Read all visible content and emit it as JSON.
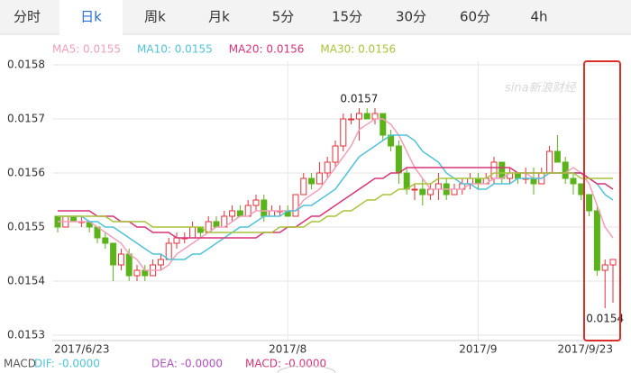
{
  "tabs": [
    "分时",
    "日k",
    "周k",
    "月k",
    "5分",
    "15分",
    "30分",
    "60分",
    "4h"
  ],
  "active_tab": 1,
  "chart_data": {
    "type": "candlestick",
    "watermark": "sina新浪财经",
    "ma_legend": [
      {
        "text": "MA5: 0.0155",
        "color": "#f2a0b8"
      },
      {
        "text": "MA10: 0.0155",
        "color": "#4fc3d8"
      },
      {
        "text": "MA20: 0.0156",
        "color": "#d9337a"
      },
      {
        "text": "MA30: 0.0156",
        "color": "#a8c43a"
      }
    ],
    "ylim": [
      0.0153,
      0.0158
    ],
    "yticks": [
      0.0153,
      0.0154,
      0.0155,
      0.0156,
      0.0157,
      0.0158
    ],
    "x_labels": [
      {
        "index": 0,
        "label": "2017/6/23"
      },
      {
        "index": 29,
        "label": "2017/8"
      },
      {
        "index": 53,
        "label": "2017/9"
      },
      {
        "index": 70,
        "label": "2017/9/23"
      }
    ],
    "up_color": "#e0303a",
    "down_color": "#5bb31a",
    "open": [
      0.01552,
      0.0155,
      0.01552,
      0.01551,
      0.01551,
      0.0155,
      0.01548,
      0.01547,
      0.01543,
      0.01545,
      0.01541,
      0.01542,
      0.01541,
      0.01543,
      0.01544,
      0.01547,
      0.01548,
      0.01548,
      0.0155,
      0.01549,
      0.01551,
      0.0155,
      0.01552,
      0.01553,
      0.01552,
      0.01554,
      0.01555,
      0.01552,
      0.01553,
      0.01553,
      0.01552,
      0.01556,
      0.01559,
      0.01558,
      0.0156,
      0.01562,
      0.01565,
      0.0157,
      0.0157,
      0.01571,
      0.0157,
      0.01571,
      0.01567,
      0.01565,
      0.0156,
      0.01557,
      0.01557,
      0.01556,
      0.01557,
      0.01558,
      0.01556,
      0.01557,
      0.01558,
      0.01559,
      0.01558,
      0.01559,
      0.01562,
      0.01559,
      0.0156,
      0.01559,
      0.01559,
      0.01558,
      0.0156,
      0.01564,
      0.01562,
      0.01559,
      0.01558,
      0.01556,
      0.01553,
      0.01542,
      0.01543
    ],
    "high": [
      0.01552,
      0.01552,
      0.01552,
      0.01552,
      0.01551,
      0.0155,
      0.01549,
      0.01547,
      0.01546,
      0.01546,
      0.01543,
      0.01543,
      0.01544,
      0.01545,
      0.01548,
      0.01549,
      0.01549,
      0.01551,
      0.0155,
      0.01552,
      0.01552,
      0.01553,
      0.01554,
      0.01554,
      0.01555,
      0.01556,
      0.01556,
      0.01554,
      0.01554,
      0.01554,
      0.01556,
      0.0156,
      0.0156,
      0.01562,
      0.01563,
      0.01566,
      0.01571,
      0.01571,
      0.01572,
      0.01572,
      0.01572,
      0.01571,
      0.01568,
      0.01566,
      0.01561,
      0.01558,
      0.01559,
      0.01558,
      0.0156,
      0.01559,
      0.01558,
      0.01559,
      0.0156,
      0.0156,
      0.0156,
      0.01563,
      0.01562,
      0.01561,
      0.0156,
      0.01561,
      0.01561,
      0.01561,
      0.01565,
      0.01567,
      0.01563,
      0.0156,
      0.01558,
      0.01556,
      0.01554,
      0.01544,
      0.01544
    ],
    "low": [
      0.01549,
      0.0155,
      0.01551,
      0.0155,
      0.01549,
      0.01547,
      0.01546,
      0.0154,
      0.01542,
      0.0154,
      0.0154,
      0.0154,
      0.01541,
      0.01542,
      0.01544,
      0.01546,
      0.01547,
      0.01548,
      0.01548,
      0.01549,
      0.0155,
      0.0155,
      0.01551,
      0.01552,
      0.01552,
      0.01553,
      0.01551,
      0.01552,
      0.01552,
      0.01552,
      0.01552,
      0.01556,
      0.01557,
      0.01558,
      0.01559,
      0.01561,
      0.01564,
      0.01569,
      0.01566,
      0.0157,
      0.01569,
      0.01566,
      0.01564,
      0.01558,
      0.01556,
      0.01555,
      0.01554,
      0.01555,
      0.01555,
      0.01555,
      0.01556,
      0.01556,
      0.01557,
      0.01557,
      0.01558,
      0.01558,
      0.01558,
      0.01558,
      0.01558,
      0.01558,
      0.01556,
      0.01558,
      0.0156,
      0.01562,
      0.01558,
      0.01556,
      0.01555,
      0.01552,
      0.01541,
      0.01535,
      0.01536
    ],
    "close": [
      0.0155,
      0.01552,
      0.01551,
      0.01551,
      0.0155,
      0.01548,
      0.01547,
      0.01543,
      0.01545,
      0.01541,
      0.01542,
      0.01541,
      0.01543,
      0.01544,
      0.01547,
      0.01548,
      0.01548,
      0.0155,
      0.01549,
      0.01551,
      0.0155,
      0.01552,
      0.01553,
      0.01552,
      0.01554,
      0.01555,
      0.01552,
      0.01553,
      0.01553,
      0.01552,
      0.01556,
      0.01559,
      0.01558,
      0.0156,
      0.01562,
      0.01565,
      0.0157,
      0.0157,
      0.01571,
      0.0157,
      0.01571,
      0.01567,
      0.01565,
      0.0156,
      0.01557,
      0.01557,
      0.01556,
      0.01557,
      0.01558,
      0.01556,
      0.01557,
      0.01558,
      0.01559,
      0.01558,
      0.01559,
      0.01562,
      0.01559,
      0.0156,
      0.01559,
      0.01559,
      0.01558,
      0.0156,
      0.01564,
      0.01562,
      0.01559,
      0.01558,
      0.01556,
      0.01553,
      0.01542,
      0.01543,
      0.01544
    ],
    "series": [
      {
        "name": "MA5",
        "color": "#f2a0b8",
        "values": [
          0.01551,
          0.01551,
          0.01551,
          0.01551,
          0.01551,
          0.0155,
          0.01549,
          0.01548,
          0.01547,
          0.01545,
          0.01544,
          0.01542,
          0.01542,
          0.01542,
          0.01543,
          0.01545,
          0.01546,
          0.01547,
          0.01548,
          0.01549,
          0.0155,
          0.0155,
          0.01551,
          0.01552,
          0.01552,
          0.01553,
          0.01553,
          0.01553,
          0.01553,
          0.01553,
          0.01553,
          0.01555,
          0.01556,
          0.01557,
          0.01559,
          0.01561,
          0.01563,
          0.01565,
          0.01568,
          0.01569,
          0.0157,
          0.0157,
          0.01569,
          0.01567,
          0.01564,
          0.01561,
          0.01559,
          0.01557,
          0.01557,
          0.01557,
          0.01557,
          0.01557,
          0.01558,
          0.01558,
          0.01558,
          0.01559,
          0.01559,
          0.0156,
          0.0156,
          0.0156,
          0.01559,
          0.01559,
          0.0156,
          0.0156,
          0.0156,
          0.01561,
          0.0156,
          0.01558,
          0.01554,
          0.0155,
          0.01548
        ]
      },
      {
        "name": "MA10",
        "color": "#4fc3d8",
        "values": [
          0.01552,
          0.01552,
          0.01552,
          0.01552,
          0.01551,
          0.01551,
          0.0155,
          0.0155,
          0.01549,
          0.01548,
          0.01547,
          0.01546,
          0.01545,
          0.01545,
          0.01544,
          0.01544,
          0.01544,
          0.01545,
          0.01545,
          0.01546,
          0.01547,
          0.01548,
          0.01549,
          0.0155,
          0.0155,
          0.01551,
          0.01552,
          0.01552,
          0.01552,
          0.01553,
          0.01553,
          0.01554,
          0.01554,
          0.01555,
          0.01556,
          0.01557,
          0.01559,
          0.01561,
          0.01563,
          0.01564,
          0.01565,
          0.01566,
          0.01567,
          0.01567,
          0.01567,
          0.01566,
          0.01564,
          0.01563,
          0.01562,
          0.0156,
          0.01559,
          0.01558,
          0.01558,
          0.01557,
          0.01557,
          0.01558,
          0.01558,
          0.01558,
          0.01559,
          0.01559,
          0.01559,
          0.01559,
          0.0156,
          0.0156,
          0.0156,
          0.0156,
          0.0156,
          0.01559,
          0.01558,
          0.01556,
          0.01555
        ]
      },
      {
        "name": "MA20",
        "color": "#d9337a",
        "values": [
          0.01553,
          0.01553,
          0.01553,
          0.01553,
          0.01553,
          0.01552,
          0.01552,
          0.01552,
          0.01551,
          0.01551,
          0.0155,
          0.0155,
          0.01549,
          0.01549,
          0.01549,
          0.01548,
          0.01548,
          0.01548,
          0.01548,
          0.01548,
          0.01548,
          0.01548,
          0.01548,
          0.01548,
          0.01548,
          0.01548,
          0.01549,
          0.01549,
          0.01549,
          0.0155,
          0.0155,
          0.01551,
          0.01552,
          0.01552,
          0.01553,
          0.01554,
          0.01555,
          0.01556,
          0.01557,
          0.01558,
          0.01559,
          0.01559,
          0.0156,
          0.0156,
          0.01561,
          0.01561,
          0.01561,
          0.01561,
          0.01561,
          0.01561,
          0.01561,
          0.01561,
          0.01561,
          0.01561,
          0.01561,
          0.01561,
          0.01561,
          0.01561,
          0.0156,
          0.0156,
          0.0156,
          0.0156,
          0.0156,
          0.0156,
          0.0156,
          0.0156,
          0.0156,
          0.01559,
          0.01558,
          0.01558,
          0.01557
        ]
      },
      {
        "name": "MA30",
        "color": "#a8c43a",
        "values": [
          0.01552,
          0.01552,
          0.01552,
          0.01552,
          0.01552,
          0.01552,
          0.01552,
          0.01551,
          0.01551,
          0.01551,
          0.01551,
          0.01551,
          0.0155,
          0.0155,
          0.0155,
          0.0155,
          0.0155,
          0.0155,
          0.0155,
          0.01549,
          0.01549,
          0.01549,
          0.01549,
          0.01549,
          0.01549,
          0.01549,
          0.01549,
          0.01549,
          0.0155,
          0.0155,
          0.0155,
          0.0155,
          0.01551,
          0.01551,
          0.01552,
          0.01552,
          0.01553,
          0.01553,
          0.01554,
          0.01555,
          0.01555,
          0.01556,
          0.01556,
          0.01557,
          0.01557,
          0.01558,
          0.01558,
          0.01558,
          0.01559,
          0.01559,
          0.01559,
          0.01559,
          0.01559,
          0.01559,
          0.01559,
          0.0156,
          0.0156,
          0.0156,
          0.0156,
          0.0156,
          0.0156,
          0.0156,
          0.0156,
          0.0156,
          0.0156,
          0.0156,
          0.01559,
          0.01559,
          0.01559,
          0.01559,
          0.01559
        ]
      }
    ],
    "annotations": [
      {
        "text": "0.0157",
        "index": 38
      },
      {
        "text": "0.0154",
        "index": 69
      }
    ],
    "macd": {
      "title": "MACD",
      "items": [
        {
          "text": "DIF: -0.0000",
          "color": "#4fc3d8"
        },
        {
          "text": "DEA: -0.0000",
          "color": "#b04fc0"
        },
        {
          "text": "MACD: -0.0000",
          "color": "#d9337a"
        }
      ]
    }
  }
}
